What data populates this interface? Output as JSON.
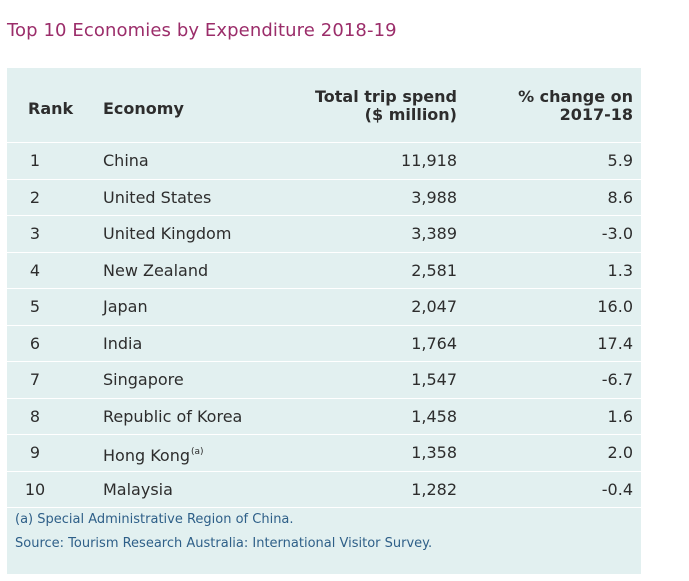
{
  "title": "Top 10 Economies by Expenditure 2018-19",
  "headers": {
    "rank": "Rank",
    "economy": "Economy",
    "spend_line1": "Total trip spend",
    "spend_line2": "($ million)",
    "pct_line1": "% change on",
    "pct_line2": "2017-18"
  },
  "rows": [
    {
      "rank": "1",
      "economy": "China",
      "note": "",
      "spend": "11,918",
      "pct": "5.9"
    },
    {
      "rank": "2",
      "economy": "United States",
      "note": "",
      "spend": "3,988",
      "pct": "8.6"
    },
    {
      "rank": "3",
      "economy": "United Kingdom",
      "note": "",
      "spend": "3,389",
      "pct": "-3.0"
    },
    {
      "rank": "4",
      "economy": "New Zealand",
      "note": "",
      "spend": "2,581",
      "pct": "1.3"
    },
    {
      "rank": "5",
      "economy": "Japan",
      "note": "",
      "spend": "2,047",
      "pct": "16.0"
    },
    {
      "rank": "6",
      "economy": "India",
      "note": "",
      "spend": "1,764",
      "pct": "17.4"
    },
    {
      "rank": "7",
      "economy": "Singapore",
      "note": "",
      "spend": "1,547",
      "pct": "-6.7"
    },
    {
      "rank": "8",
      "economy": "Republic of Korea",
      "note": "",
      "spend": "1,458",
      "pct": "1.6"
    },
    {
      "rank": "9",
      "economy": "Hong Kong",
      "note": "(a)",
      "spend": "1,358",
      "pct": "2.0"
    },
    {
      "rank": "10",
      "economy": "Malaysia",
      "note": "",
      "spend": "1,282",
      "pct": "-0.4"
    }
  ],
  "footnotes": {
    "note_a": "(a)  Special Administrative Region of China.",
    "source": "Source: Tourism Research Australia: International Visitor Survey."
  },
  "colors": {
    "title": "#9b2d6a",
    "panel_bg": "#e2f0f0",
    "text": "#2d2d2d",
    "footnote": "#2e5f88"
  }
}
